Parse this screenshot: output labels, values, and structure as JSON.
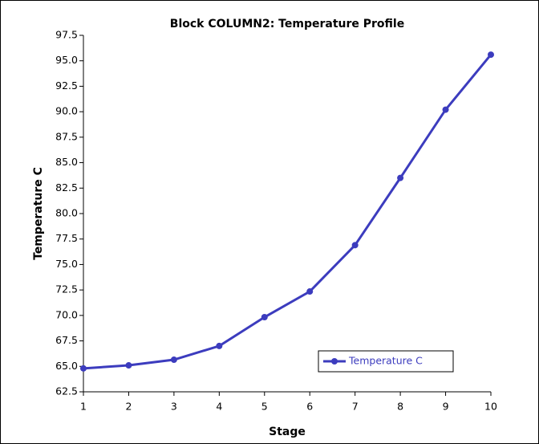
{
  "chart_data": {
    "type": "line",
    "title": "Block COLUMN2: Temperature Profile",
    "xlabel": "Stage",
    "ylabel": "Temperature C",
    "x": [
      1,
      2,
      3,
      4,
      5,
      6,
      7,
      8,
      9,
      10
    ],
    "series": [
      {
        "name": "Temperature C",
        "color": "#3c3cbe",
        "values": [
          64.8,
          65.1,
          65.65,
          67.0,
          69.83,
          72.35,
          76.9,
          83.5,
          90.2,
          95.6
        ]
      }
    ],
    "xlim": [
      1,
      10
    ],
    "xticks": [
      1,
      2,
      3,
      4,
      5,
      6,
      7,
      8,
      9,
      10
    ],
    "ylim": [
      62.5,
      97.5
    ],
    "yticks": [
      62.5,
      {
        "value": 65,
        "label": "65.0"
      },
      67.5,
      {
        "value": 70,
        "label": "70.0"
      },
      72.5,
      {
        "value": 75,
        "label": "75.0"
      },
      77.5,
      {
        "value": 80,
        "label": "80.0"
      },
      82.5,
      {
        "value": 85,
        "label": "85.0"
      },
      87.5,
      {
        "value": 90,
        "label": "90.0"
      },
      92.5,
      {
        "value": 95,
        "label": "95.0"
      },
      97.5
    ],
    "grid": false,
    "legend": "lower right"
  }
}
